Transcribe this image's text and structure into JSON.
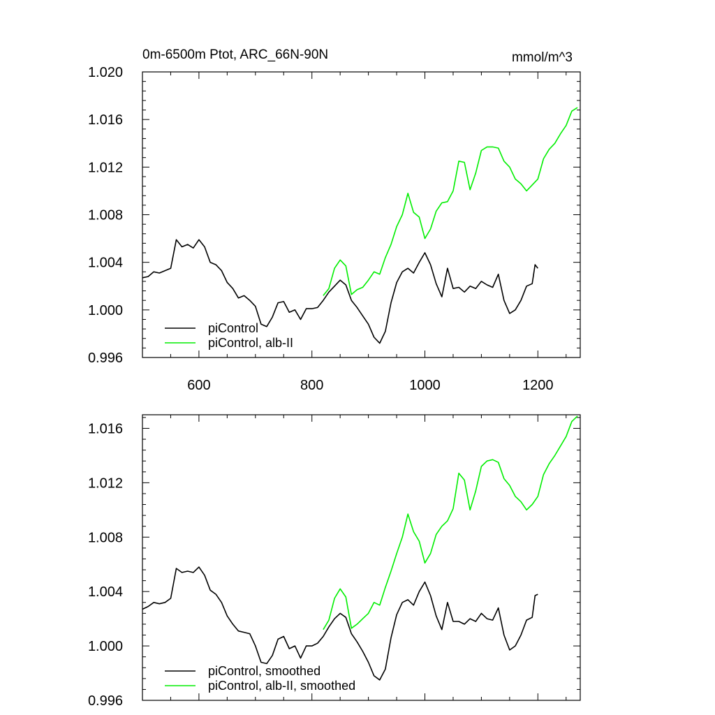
{
  "chart_data": [
    {
      "type": "line",
      "title": "0m-6500m Ptot, ARC_66N-90N",
      "units": "mmol/m^3",
      "xlim": [
        500,
        1275
      ],
      "ylim": [
        0.996,
        1.02
      ],
      "x_ticks": [
        600,
        800,
        1000,
        1200
      ],
      "x_tick_labels": [
        "600",
        "800",
        "1000",
        "1200"
      ],
      "y_ticks": [
        0.996,
        1.0,
        1.004,
        1.008,
        1.012,
        1.016,
        1.02
      ],
      "y_tick_labels": [
        "0.996",
        "1.000",
        "1.004",
        "1.008",
        "1.012",
        "1.016",
        "1.020"
      ],
      "legend_position": "bottom-left",
      "grid": false,
      "series": [
        {
          "name": "piControl",
          "color": "#000000",
          "points": [
            [
              500,
              1.0027
            ],
            [
              510,
              1.0028
            ],
            [
              520,
              1.0032
            ],
            [
              530,
              1.0031
            ],
            [
              540,
              1.0033
            ],
            [
              550,
              1.0035
            ],
            [
              560,
              1.0059
            ],
            [
              570,
              1.0053
            ],
            [
              580,
              1.0055
            ],
            [
              590,
              1.0052
            ],
            [
              600,
              1.0059
            ],
            [
              610,
              1.0053
            ],
            [
              620,
              1.004
            ],
            [
              630,
              1.0038
            ],
            [
              640,
              1.0033
            ],
            [
              650,
              1.0023
            ],
            [
              660,
              1.0018
            ],
            [
              670,
              1.001
            ],
            [
              680,
              1.0012
            ],
            [
              690,
              1.0008
            ],
            [
              700,
              1.0003
            ],
            [
              710,
              0.9988
            ],
            [
              720,
              0.9986
            ],
            [
              730,
              0.9994
            ],
            [
              740,
              1.0006
            ],
            [
              750,
              1.0007
            ],
            [
              760,
              0.9998
            ],
            [
              770,
              1.0
            ],
            [
              780,
              0.9992
            ],
            [
              790,
              1.0001
            ],
            [
              800,
              1.0001
            ],
            [
              810,
              1.0002
            ],
            [
              820,
              1.0008
            ],
            [
              830,
              1.0015
            ],
            [
              840,
              1.002
            ],
            [
              850,
              1.0025
            ],
            [
              860,
              1.0021
            ],
            [
              870,
              1.0008
            ],
            [
              880,
              1.0002
            ],
            [
              890,
              0.9995
            ],
            [
              900,
              0.9988
            ],
            [
              910,
              0.9977
            ],
            [
              920,
              0.9972
            ],
            [
              930,
              0.9982
            ],
            [
              940,
              1.0006
            ],
            [
              950,
              1.0023
            ],
            [
              960,
              1.0032
            ],
            [
              970,
              1.0035
            ],
            [
              980,
              1.0031
            ],
            [
              990,
              1.004
            ],
            [
              1000,
              1.0048
            ],
            [
              1010,
              1.0038
            ],
            [
              1020,
              1.0022
            ],
            [
              1030,
              1.0011
            ],
            [
              1040,
              1.0035
            ],
            [
              1050,
              1.0018
            ],
            [
              1060,
              1.0019
            ],
            [
              1070,
              1.0015
            ],
            [
              1080,
              1.002
            ],
            [
              1090,
              1.0018
            ],
            [
              1100,
              1.0024
            ],
            [
              1110,
              1.0021
            ],
            [
              1120,
              1.0019
            ],
            [
              1130,
              1.003
            ],
            [
              1140,
              1.0008
            ],
            [
              1150,
              0.9997
            ],
            [
              1160,
              1.0
            ],
            [
              1170,
              1.0008
            ],
            [
              1180,
              1.002
            ],
            [
              1190,
              1.0022
            ],
            [
              1195,
              1.0038
            ],
            [
              1200,
              1.0035
            ]
          ]
        },
        {
          "name": "piControl, alb-II",
          "color": "#00ee00",
          "points": [
            [
              820,
              1.0012
            ],
            [
              830,
              1.0018
            ],
            [
              840,
              1.0035
            ],
            [
              850,
              1.0042
            ],
            [
              860,
              1.0037
            ],
            [
              870,
              1.0013
            ],
            [
              880,
              1.0017
            ],
            [
              890,
              1.0019
            ],
            [
              900,
              1.0025
            ],
            [
              910,
              1.0032
            ],
            [
              920,
              1.003
            ],
            [
              930,
              1.0044
            ],
            [
              940,
              1.0055
            ],
            [
              950,
              1.007
            ],
            [
              960,
              1.008
            ],
            [
              970,
              1.0098
            ],
            [
              980,
              1.0082
            ],
            [
              990,
              1.0078
            ],
            [
              1000,
              1.006
            ],
            [
              1010,
              1.0068
            ],
            [
              1020,
              1.0083
            ],
            [
              1030,
              1.009
            ],
            [
              1040,
              1.0091
            ],
            [
              1050,
              1.01
            ],
            [
              1060,
              1.0125
            ],
            [
              1070,
              1.0124
            ],
            [
              1080,
              1.0101
            ],
            [
              1090,
              1.0115
            ],
            [
              1100,
              1.0134
            ],
            [
              1110,
              1.0137
            ],
            [
              1120,
              1.0137
            ],
            [
              1130,
              1.0136
            ],
            [
              1140,
              1.0125
            ],
            [
              1150,
              1.012
            ],
            [
              1160,
              1.011
            ],
            [
              1170,
              1.0106
            ],
            [
              1180,
              1.01
            ],
            [
              1190,
              1.0105
            ],
            [
              1200,
              1.011
            ],
            [
              1210,
              1.0127
            ],
            [
              1220,
              1.0135
            ],
            [
              1230,
              1.014
            ],
            [
              1240,
              1.0148
            ],
            [
              1250,
              1.0155
            ],
            [
              1260,
              1.0167
            ],
            [
              1270,
              1.017
            ]
          ]
        }
      ]
    },
    {
      "type": "line",
      "xlim": [
        500,
        1275
      ],
      "ylim": [
        0.996,
        1.017
      ],
      "x_ticks": [
        600,
        800,
        1000,
        1200
      ],
      "y_ticks": [
        0.996,
        1.0,
        1.004,
        1.008,
        1.012,
        1.016
      ],
      "y_tick_labels": [
        "0.996",
        "1.000",
        "1.004",
        "1.008",
        "1.012",
        "1.016"
      ],
      "legend_position": "bottom-left",
      "grid": false,
      "series": [
        {
          "name": "piControl, smoothed",
          "color": "#000000",
          "points": [
            [
              500,
              1.0027
            ],
            [
              510,
              1.0029
            ],
            [
              520,
              1.0032
            ],
            [
              530,
              1.0031
            ],
            [
              540,
              1.0032
            ],
            [
              550,
              1.0035
            ],
            [
              560,
              1.0057
            ],
            [
              570,
              1.0054
            ],
            [
              580,
              1.0055
            ],
            [
              590,
              1.0054
            ],
            [
              600,
              1.0058
            ],
            [
              610,
              1.0052
            ],
            [
              620,
              1.0041
            ],
            [
              630,
              1.0038
            ],
            [
              640,
              1.0032
            ],
            [
              650,
              1.0022
            ],
            [
              660,
              1.0016
            ],
            [
              670,
              1.0011
            ],
            [
              680,
              1.001
            ],
            [
              690,
              1.0009
            ],
            [
              700,
              1.0
            ],
            [
              710,
              0.9988
            ],
            [
              720,
              0.9987
            ],
            [
              730,
              0.9993
            ],
            [
              740,
              1.0005
            ],
            [
              750,
              1.0007
            ],
            [
              760,
              0.9998
            ],
            [
              770,
              1.0
            ],
            [
              780,
              0.9991
            ],
            [
              790,
              1.0
            ],
            [
              800,
              1.0
            ],
            [
              810,
              1.0002
            ],
            [
              820,
              1.0007
            ],
            [
              830,
              1.0014
            ],
            [
              840,
              1.002
            ],
            [
              850,
              1.0024
            ],
            [
              860,
              1.0021
            ],
            [
              870,
              1.0009
            ],
            [
              880,
              1.0003
            ],
            [
              890,
              0.9996
            ],
            [
              900,
              0.9988
            ],
            [
              910,
              0.9978
            ],
            [
              920,
              0.9975
            ],
            [
              930,
              0.9983
            ],
            [
              940,
              1.0006
            ],
            [
              950,
              1.0023
            ],
            [
              960,
              1.0032
            ],
            [
              970,
              1.0034
            ],
            [
              980,
              1.003
            ],
            [
              990,
              1.004
            ],
            [
              1000,
              1.0047
            ],
            [
              1010,
              1.0037
            ],
            [
              1020,
              1.0022
            ],
            [
              1030,
              1.0012
            ],
            [
              1040,
              1.0032
            ],
            [
              1050,
              1.0018
            ],
            [
              1060,
              1.0018
            ],
            [
              1070,
              1.0016
            ],
            [
              1080,
              1.002
            ],
            [
              1090,
              1.0018
            ],
            [
              1100,
              1.0024
            ],
            [
              1110,
              1.002
            ],
            [
              1120,
              1.0019
            ],
            [
              1130,
              1.0028
            ],
            [
              1140,
              1.0008
            ],
            [
              1150,
              0.9997
            ],
            [
              1160,
              1.0
            ],
            [
              1170,
              1.0008
            ],
            [
              1180,
              1.0019
            ],
            [
              1190,
              1.0021
            ],
            [
              1195,
              1.0037
            ],
            [
              1200,
              1.0038
            ]
          ]
        },
        {
          "name": "piControl, alb-II, smoothed",
          "color": "#00ee00",
          "points": [
            [
              820,
              1.0012
            ],
            [
              830,
              1.0019
            ],
            [
              840,
              1.0035
            ],
            [
              850,
              1.0042
            ],
            [
              860,
              1.0036
            ],
            [
              870,
              1.0013
            ],
            [
              880,
              1.0016
            ],
            [
              890,
              1.002
            ],
            [
              900,
              1.0024
            ],
            [
              910,
              1.0032
            ],
            [
              920,
              1.003
            ],
            [
              930,
              1.0043
            ],
            [
              940,
              1.0055
            ],
            [
              950,
              1.0068
            ],
            [
              960,
              1.008
            ],
            [
              970,
              1.0097
            ],
            [
              980,
              1.0084
            ],
            [
              990,
              1.0077
            ],
            [
              1000,
              1.0061
            ],
            [
              1010,
              1.0068
            ],
            [
              1020,
              1.0082
            ],
            [
              1030,
              1.0088
            ],
            [
              1040,
              1.0092
            ],
            [
              1050,
              1.0101
            ],
            [
              1060,
              1.0127
            ],
            [
              1070,
              1.0122
            ],
            [
              1080,
              1.01
            ],
            [
              1090,
              1.0114
            ],
            [
              1100,
              1.0132
            ],
            [
              1110,
              1.0136
            ],
            [
              1120,
              1.0137
            ],
            [
              1130,
              1.0135
            ],
            [
              1140,
              1.0123
            ],
            [
              1150,
              1.0118
            ],
            [
              1160,
              1.011
            ],
            [
              1170,
              1.0106
            ],
            [
              1180,
              1.01
            ],
            [
              1190,
              1.0104
            ],
            [
              1200,
              1.011
            ],
            [
              1210,
              1.0126
            ],
            [
              1220,
              1.0134
            ],
            [
              1230,
              1.014
            ],
            [
              1240,
              1.0147
            ],
            [
              1250,
              1.0154
            ],
            [
              1260,
              1.0165
            ],
            [
              1270,
              1.0169
            ]
          ]
        }
      ]
    }
  ]
}
